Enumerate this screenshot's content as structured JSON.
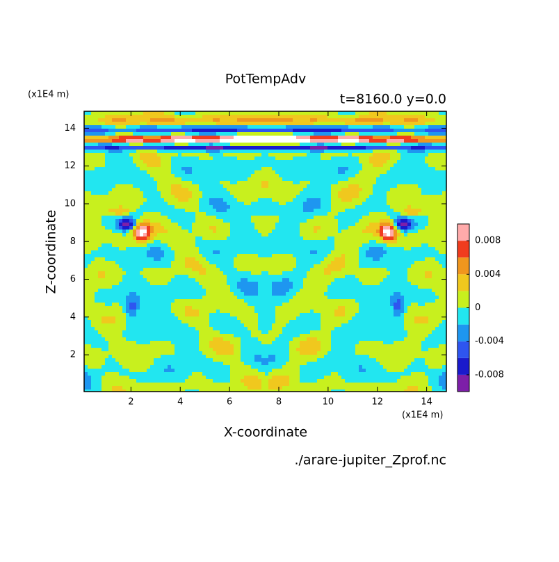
{
  "chart_data": {
    "type": "contour",
    "title": "PotTempAdv",
    "subtitle": "t=8160.0 y=0.0",
    "x_label": "X-coordinate",
    "y_label": "Z-coordinate",
    "x_unit": "(x1E4 m)",
    "y_unit": "(x1E4 m)",
    "source": "./arare-jupiter_Zprof.nc",
    "xlim": [
      0.1,
      14.8
    ],
    "xticks": [
      2,
      4,
      6,
      8,
      10,
      12,
      14
    ],
    "ylim": [
      0.05,
      14.9
    ],
    "yticks": [
      2,
      4,
      6,
      8,
      10,
      12,
      14
    ],
    "colorbar": {
      "levels": [
        -0.01,
        -0.008,
        -0.006,
        -0.004,
        -0.002,
        0,
        0.002,
        0.004,
        0.006,
        0.008,
        0.01
      ],
      "colors": [
        "#7d1fa8",
        "#1a1acc",
        "#2e55f0",
        "#1e96f0",
        "#22e6f0",
        "#c8f01e",
        "#f0c81e",
        "#f0961e",
        "#f03c1e",
        "#ffaaaa"
      ],
      "ticks": [
        -0.008,
        -0.004,
        0,
        0.004,
        0.008
      ]
    }
  }
}
